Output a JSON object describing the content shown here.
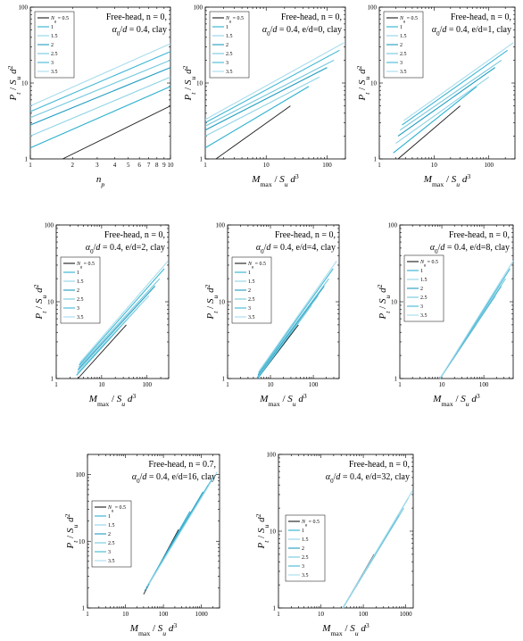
{
  "chart_data": [
    {
      "type": "line",
      "scale": "log-log",
      "annotation": [
        "Free-head, n = 0,",
        "α₀/d = 0.4, clay"
      ],
      "xlabel": "n_p",
      "ylabel": "P_t / S_u d^2",
      "xlim": [
        1,
        10
      ],
      "ylim": [
        1,
        100
      ],
      "xticks": [
        "1",
        "2",
        "3",
        "4",
        "5",
        "6",
        "7",
        "8",
        "9",
        "10"
      ],
      "yticks": [
        "1",
        "10",
        "100"
      ],
      "legend": {
        "title": "N_g = 0.5",
        "items": [
          "1",
          "1.5",
          "2",
          "2.5",
          "3",
          "3.5"
        ]
      },
      "series": [
        {
          "name": "0.5",
          "x": [
            1.7,
            10
          ],
          "y": [
            1.0,
            5.0
          ]
        },
        {
          "name": "1",
          "x": [
            1,
            10
          ],
          "y": [
            1.4,
            9.0
          ]
        },
        {
          "name": "1.5",
          "x": [
            1,
            10
          ],
          "y": [
            2.0,
            12.0
          ]
        },
        {
          "name": "2",
          "x": [
            1,
            10
          ],
          "y": [
            2.8,
            16.0
          ]
        },
        {
          "name": "2.5",
          "x": [
            1,
            10
          ],
          "y": [
            3.5,
            20.0
          ]
        },
        {
          "name": "3",
          "x": [
            1,
            10
          ],
          "y": [
            4.2,
            26.0
          ]
        },
        {
          "name": "3.5",
          "x": [
            1,
            10
          ],
          "y": [
            5.0,
            33.0
          ]
        }
      ]
    },
    {
      "type": "line",
      "scale": "log-log",
      "annotation": [
        "Free-head, n = 0,",
        "α₀/d = 0.4, e/d=0, clay"
      ],
      "xlabel": "M_max / S_u d^3",
      "ylabel": "P_t / S_u d^2",
      "xlim": [
        1,
        200
      ],
      "ylim": [
        1,
        100
      ],
      "xticks": [
        "1",
        "10",
        "100"
      ],
      "yticks": [
        "1",
        "10",
        "100"
      ],
      "legend": {
        "title": "N_g = 0.5",
        "items": [
          "1",
          "1.5",
          "2",
          "2.5",
          "3",
          "3.5"
        ]
      },
      "series": [
        {
          "name": "0.5",
          "x": [
            1.5,
            25
          ],
          "y": [
            1.0,
            5.0
          ]
        },
        {
          "name": "1",
          "x": [
            1,
            50
          ],
          "y": [
            1.4,
            9.0
          ]
        },
        {
          "name": "1.5",
          "x": [
            1,
            75
          ],
          "y": [
            2.0,
            12.0
          ]
        },
        {
          "name": "2",
          "x": [
            1,
            100
          ],
          "y": [
            2.4,
            16.0
          ]
        },
        {
          "name": "2.5",
          "x": [
            1,
            130
          ],
          "y": [
            2.7,
            20.0
          ]
        },
        {
          "name": "3",
          "x": [
            1,
            160
          ],
          "y": [
            3.0,
            27.0
          ]
        },
        {
          "name": "3.5",
          "x": [
            1,
            190
          ],
          "y": [
            3.3,
            34.0
          ]
        }
      ]
    },
    {
      "type": "line",
      "scale": "log-log",
      "annotation": [
        "Free-head, n = 0,",
        "α₀/d = 0.4, e/d=1, clay"
      ],
      "xlabel": "M_max / S_u d^3",
      "ylabel": "P_t / S_u d^2",
      "xlim": [
        1,
        300
      ],
      "ylim": [
        1,
        100
      ],
      "xticks": [
        "1",
        "10",
        "100"
      ],
      "yticks": [
        "1",
        "10",
        "100"
      ],
      "legend": {
        "title": "N_g = 0.5",
        "items": [
          "1",
          "1.5",
          "2",
          "2.5",
          "3",
          "3.5"
        ]
      },
      "series": [
        {
          "name": "0.5",
          "x": [
            2.2,
            30
          ],
          "y": [
            1.0,
            5.0
          ]
        },
        {
          "name": "1",
          "x": [
            1.8,
            60
          ],
          "y": [
            1.2,
            9.0
          ]
        },
        {
          "name": "1.5",
          "x": [
            2.0,
            100
          ],
          "y": [
            1.6,
            12.0
          ]
        },
        {
          "name": "2",
          "x": [
            2.2,
            130
          ],
          "y": [
            2.0,
            16.0
          ]
        },
        {
          "name": "2.5",
          "x": [
            2.4,
            170
          ],
          "y": [
            2.4,
            20.0
          ]
        },
        {
          "name": "3",
          "x": [
            2.6,
            220
          ],
          "y": [
            2.8,
            27.0
          ]
        },
        {
          "name": "3.5",
          "x": [
            2.8,
            280
          ],
          "y": [
            3.2,
            34.0
          ]
        }
      ]
    },
    {
      "type": "line",
      "scale": "log-log",
      "annotation": [
        "Free-head, n = 0,",
        "α₀/d = 0.4, e/d=2, clay"
      ],
      "xlabel": "M_max / S_u d^3",
      "ylabel": "P_t / S_u d^2",
      "xlim": [
        1,
        300
      ],
      "ylim": [
        1,
        100
      ],
      "xticks": [
        "1",
        "10",
        "100"
      ],
      "yticks": [
        "1",
        "10",
        "100"
      ],
      "legend": {
        "title": "N_g = 0.5",
        "items": [
          "1",
          "1.5",
          "2",
          "2.5",
          "3",
          "3.5"
        ]
      },
      "series": [
        {
          "name": "0.5",
          "x": [
            3.0,
            35
          ],
          "y": [
            1.0,
            5.0
          ]
        },
        {
          "name": "1",
          "x": [
            2.8,
            70
          ],
          "y": [
            1.1,
            9.0
          ]
        },
        {
          "name": "1.5",
          "x": [
            2.9,
            110
          ],
          "y": [
            1.2,
            12.0
          ]
        },
        {
          "name": "2",
          "x": [
            3.0,
            150
          ],
          "y": [
            1.3,
            16.0
          ]
        },
        {
          "name": "2.5",
          "x": [
            3.1,
            190
          ],
          "y": [
            1.4,
            20.0
          ]
        },
        {
          "name": "3",
          "x": [
            3.2,
            240
          ],
          "y": [
            1.5,
            27.0
          ]
        },
        {
          "name": "3.5",
          "x": [
            3.3,
            290
          ],
          "y": [
            1.6,
            34.0
          ]
        }
      ]
    },
    {
      "type": "line",
      "scale": "log-log",
      "annotation": [
        "Free-head, n = 0,",
        "α₀/d = 0.4, e/d=4, clay"
      ],
      "xlabel": "M_max / S_u d^3",
      "ylabel": "P_t / S_u d^2",
      "xlim": [
        1,
        400
      ],
      "ylim": [
        1,
        100
      ],
      "xticks": [
        "1",
        "10",
        "100"
      ],
      "yticks": [
        "1",
        "10",
        "100"
      ],
      "legend": {
        "title": "N_g = 0.5",
        "items": [
          "1",
          "1.5",
          "2",
          "2.5",
          "3",
          "3.5"
        ]
      },
      "series": [
        {
          "name": "0.5",
          "x": [
            5.0,
            45
          ],
          "y": [
            1.0,
            5.0
          ]
        },
        {
          "name": "1",
          "x": [
            5.0,
            90
          ],
          "y": [
            1.0,
            9.0
          ]
        },
        {
          "name": "1.5",
          "x": [
            5.0,
            130
          ],
          "y": [
            1.05,
            12.0
          ]
        },
        {
          "name": "2",
          "x": [
            5.1,
            180
          ],
          "y": [
            1.1,
            16.0
          ]
        },
        {
          "name": "2.5",
          "x": [
            5.2,
            230
          ],
          "y": [
            1.15,
            20.0
          ]
        },
        {
          "name": "3",
          "x": [
            5.3,
            290
          ],
          "y": [
            1.2,
            27.0
          ]
        },
        {
          "name": "3.5",
          "x": [
            5.4,
            350
          ],
          "y": [
            1.25,
            34.0
          ]
        }
      ]
    },
    {
      "type": "line",
      "scale": "log-log",
      "annotation": [
        "Free-head, n = 0,",
        "α₀/d = 0.4, e/d=8, clay"
      ],
      "xlabel": "M_max / S_u d^3",
      "ylabel": "P_t / S_u d^2",
      "xlim": [
        1,
        500
      ],
      "ylim": [
        1,
        100
      ],
      "xticks": [
        "1",
        "10",
        "100"
      ],
      "yticks": [
        "1",
        "10",
        "100"
      ],
      "legend": {
        "title": "N_g = 0.5",
        "items": [
          "1",
          "1.5",
          "2",
          "2.5",
          "3",
          "3.5"
        ]
      },
      "series": [
        {
          "name": "0.5",
          "x": [
            9.0,
            65
          ],
          "y": [
            1.0,
            5.0
          ]
        },
        {
          "name": "1",
          "x": [
            9.0,
            130
          ],
          "y": [
            1.0,
            9.0
          ]
        },
        {
          "name": "1.5",
          "x": [
            9.0,
            190
          ],
          "y": [
            1.0,
            12.0
          ]
        },
        {
          "name": "2",
          "x": [
            9.0,
            260
          ],
          "y": [
            1.0,
            16.0
          ]
        },
        {
          "name": "2.5",
          "x": [
            9.0,
            330
          ],
          "y": [
            1.0,
            20.0
          ]
        },
        {
          "name": "3",
          "x": [
            9.0,
            420
          ],
          "y": [
            1.0,
            27.0
          ]
        },
        {
          "name": "3.5",
          "x": [
            9.0,
            500
          ],
          "y": [
            1.0,
            34.0
          ]
        }
      ]
    },
    {
      "type": "line",
      "scale": "log-log",
      "annotation": [
        "Free-head, n = 0.7,",
        "α₀/d = 0.4, e/d=16, clay"
      ],
      "xlabel": "M_max / S_u d^3",
      "ylabel": "P_t / S_u d^2",
      "xlim": [
        1,
        3000
      ],
      "ylim": [
        1,
        200
      ],
      "xticks": [
        "1",
        "10",
        "100",
        "1000"
      ],
      "yticks": [
        "1",
        "10",
        "100"
      ],
      "legend": {
        "title": "N_g = 0.5",
        "items": [
          "1",
          "1.5",
          "2",
          "2.5",
          "3",
          "3.5"
        ]
      },
      "series": [
        {
          "name": "0.5",
          "x": [
            30,
            250
          ],
          "y": [
            1.6,
            15.0
          ]
        },
        {
          "name": "1",
          "x": [
            32,
            500
          ],
          "y": [
            1.8,
            28.0
          ]
        },
        {
          "name": "1.5",
          "x": [
            34,
            800
          ],
          "y": [
            1.9,
            40.0
          ]
        },
        {
          "name": "2",
          "x": [
            36,
            1100
          ],
          "y": [
            2.0,
            55.0
          ]
        },
        {
          "name": "2.5",
          "x": [
            38,
            1500
          ],
          "y": [
            2.1,
            70.0
          ]
        },
        {
          "name": "3",
          "x": [
            40,
            2000
          ],
          "y": [
            2.2,
            90.0
          ]
        },
        {
          "name": "3.5",
          "x": [
            42,
            2600
          ],
          "y": [
            2.3,
            110.0
          ]
        }
      ]
    },
    {
      "type": "line",
      "scale": "log-log",
      "annotation": [
        "Free-head, n = 0,",
        "α₀/d = 0.4, e/d=32, clay"
      ],
      "xlabel": "M_max / S_u d^3",
      "ylabel": "P_t / S_u d^2",
      "xlim": [
        1,
        1500
      ],
      "ylim": [
        1,
        100
      ],
      "xticks": [
        "1",
        "10",
        "100",
        "1000"
      ],
      "yticks": [
        "1",
        "10",
        "100"
      ],
      "legend": {
        "title": "N_g = 0.5",
        "items": [
          "1",
          "1.5",
          "2",
          "2.5",
          "3",
          "3.5"
        ]
      },
      "series": [
        {
          "name": "0.5",
          "x": [
            33,
            180
          ],
          "y": [
            1.0,
            5.0
          ]
        },
        {
          "name": "1",
          "x": [
            33,
            350
          ],
          "y": [
            1.0,
            9.0
          ]
        },
        {
          "name": "1.5",
          "x": [
            33,
            500
          ],
          "y": [
            1.0,
            12.0
          ]
        },
        {
          "name": "2",
          "x": [
            33,
            700
          ],
          "y": [
            1.0,
            16.0
          ]
        },
        {
          "name": "2.5",
          "x": [
            33,
            900
          ],
          "y": [
            1.0,
            20.0
          ]
        },
        {
          "name": "3",
          "x": [
            33,
            1150
          ],
          "y": [
            1.0,
            27.0
          ]
        },
        {
          "name": "3.5",
          "x": [
            33,
            1450
          ],
          "y": [
            1.0,
            34.0
          ]
        }
      ]
    }
  ],
  "series_colors": [
    "#1a1a1a",
    "#2bb0cf",
    "#8fd3e6",
    "#1f9cc0",
    "#74c8de",
    "#3fb7d4",
    "#a7dced"
  ]
}
